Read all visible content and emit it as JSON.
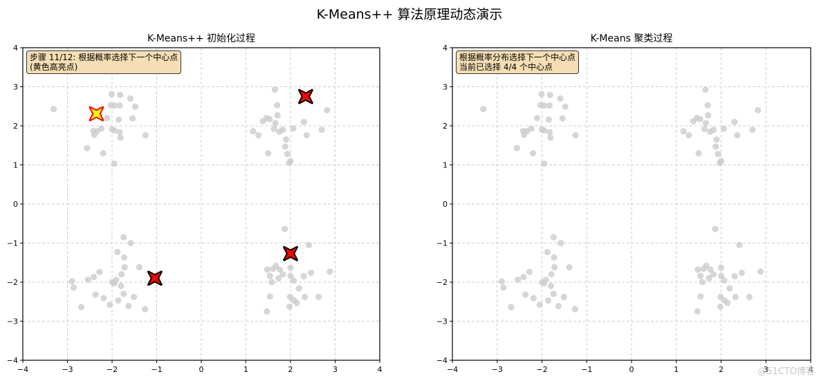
{
  "figure": {
    "suptitle": "K-Means++ 算法原理动态演示",
    "watermark": "@51CTO博客"
  },
  "left_panel": {
    "title": "K-Means++ 初始化过程",
    "info_line1": "步骤 11/12: 根据概率选择下一个中心点",
    "info_line2": "(黄色高亮点)"
  },
  "right_panel": {
    "title": "K-Means 聚类过程",
    "info_line1": "根据概率分布选择下一个中心点",
    "info_line2": "当前已选择 4/4 个中心点"
  },
  "colors": {
    "point": "#cccccc",
    "center_fill": "#ff0000",
    "center_edge": "#000000",
    "highlight_fill": "#ffff00",
    "highlight_edge": "#ff0000",
    "grid": "#cccccc",
    "infobox_bg": "#f5deb3"
  },
  "chart_data": [
    {
      "type": "scatter",
      "title": "K-Means++ 初始化过程",
      "xlabel": "",
      "ylabel": "",
      "xlim": [
        -4,
        4
      ],
      "ylim": [
        -4,
        4
      ],
      "xticks": [
        -4,
        -3,
        -2,
        -1,
        0,
        1,
        2,
        3,
        4
      ],
      "yticks": [
        -4,
        -3,
        -2,
        -1,
        0,
        1,
        2,
        3,
        4
      ],
      "grid": true,
      "annotation": "步骤 11/12: 根据概率选择下一个中心点 (黄色高亮点)",
      "series": [
        {
          "name": "data points",
          "points": [
            [
              -3.31,
              2.43
            ],
            [
              -2.01,
              2.81
            ],
            [
              -1.82,
              2.79
            ],
            [
              -1.59,
              2.7
            ],
            [
              -2.03,
              2.53
            ],
            [
              -1.95,
              2.52
            ],
            [
              -1.83,
              2.52
            ],
            [
              -1.48,
              2.49
            ],
            [
              -2.11,
              2.2
            ],
            [
              -1.85,
              2.16
            ],
            [
              -1.54,
              2.19
            ],
            [
              -2.42,
              1.87
            ],
            [
              -2.34,
              1.86
            ],
            [
              -2.24,
              1.93
            ],
            [
              -2.4,
              1.77
            ],
            [
              -2.0,
              1.91
            ],
            [
              -1.95,
              1.88
            ],
            [
              -1.83,
              1.84
            ],
            [
              -1.81,
              1.7
            ],
            [
              -1.25,
              1.76
            ],
            [
              -2.56,
              1.43
            ],
            [
              -2.2,
              1.3
            ],
            [
              -1.95,
              1.03
            ],
            [
              1.16,
              1.86
            ],
            [
              1.28,
              1.76
            ],
            [
              1.38,
              2.12
            ],
            [
              1.46,
              2.2
            ],
            [
              1.53,
              2.17
            ],
            [
              1.65,
              2.93
            ],
            [
              1.7,
              2.53
            ],
            [
              1.71,
              2.27
            ],
            [
              1.66,
              2.07
            ],
            [
              1.63,
              1.92
            ],
            [
              1.75,
              1.85
            ],
            [
              1.83,
              1.9
            ],
            [
              1.9,
              1.65
            ],
            [
              1.5,
              1.3
            ],
            [
              1.88,
              1.47
            ],
            [
              1.93,
              1.28
            ],
            [
              2.06,
              1.93
            ],
            [
              2.3,
              2.1
            ],
            [
              2.36,
              1.76
            ],
            [
              2.7,
              1.9
            ],
            [
              2.82,
              2.4
            ],
            [
              1.97,
              1.05
            ],
            [
              2.0,
              1.1
            ],
            [
              -2.0,
              -2.0
            ],
            [
              -1.8,
              -2.1
            ],
            [
              -2.28,
              -1.74
            ],
            [
              -2.41,
              -1.87
            ],
            [
              -2.54,
              -1.94
            ],
            [
              -2.37,
              -2.32
            ],
            [
              -2.19,
              -2.41
            ],
            [
              -2.05,
              -2.58
            ],
            [
              -2.69,
              -2.64
            ],
            [
              -2.86,
              -2.14
            ],
            [
              -2.9,
              -1.98
            ],
            [
              -1.86,
              -2.47
            ],
            [
              -1.79,
              -1.8
            ],
            [
              -1.73,
              -1.37
            ],
            [
              -1.72,
              -1.62
            ],
            [
              -1.88,
              -1.23
            ],
            [
              -1.63,
              -2.61
            ],
            [
              -1.39,
              -1.62
            ],
            [
              -1.26,
              -2.69
            ],
            [
              -1.74,
              -0.85
            ],
            [
              -1.58,
              -1.0
            ],
            [
              -1.91,
              -1.94
            ],
            [
              -1.51,
              -2.38
            ],
            [
              -1.95,
              -2.03
            ],
            [
              -1.74,
              -2.3
            ],
            [
              1.87,
              -0.64
            ],
            [
              2.41,
              -1.05
            ],
            [
              1.61,
              -1.66
            ],
            [
              1.67,
              -1.58
            ],
            [
              1.76,
              -1.68
            ],
            [
              1.73,
              -1.9
            ],
            [
              1.54,
              -1.84
            ],
            [
              1.48,
              -1.68
            ],
            [
              2.0,
              -1.63
            ],
            [
              2.0,
              -1.84
            ],
            [
              1.99,
              -2.38
            ],
            [
              2.08,
              -2.47
            ],
            [
              2.14,
              -2.53
            ],
            [
              2.07,
              -1.96
            ],
            [
              2.3,
              -1.85
            ],
            [
              2.46,
              -1.76
            ],
            [
              2.88,
              -1.73
            ],
            [
              2.32,
              -2.38
            ],
            [
              2.63,
              -2.38
            ],
            [
              1.54,
              -2.37
            ],
            [
              1.47,
              -2.75
            ],
            [
              1.98,
              -2.63
            ],
            [
              1.58,
              -2.0
            ],
            [
              2.19,
              -2.16
            ],
            [
              1.83,
              -1.8
            ]
          ]
        },
        {
          "name": "selected centers",
          "points": [
            [
              2.34,
              2.75
            ],
            [
              2.0,
              -1.27
            ],
            [
              -1.04,
              -1.9
            ]
          ]
        },
        {
          "name": "highlighted candidate",
          "points": [
            [
              -2.35,
              2.31
            ]
          ]
        }
      ]
    },
    {
      "type": "scatter",
      "title": "K-Means 聚类过程",
      "xlabel": "",
      "ylabel": "",
      "xlim": [
        -4,
        4
      ],
      "ylim": [
        -4,
        4
      ],
      "xticks": [
        -4,
        -3,
        -2,
        -1,
        0,
        1,
        2,
        3,
        4
      ],
      "yticks": [
        -4,
        -3,
        -2,
        -1,
        0,
        1,
        2,
        3,
        4
      ],
      "grid": true,
      "annotation": "根据概率分布选择下一个中心点 当前已选择 4/4 个中心点",
      "series": [
        {
          "name": "data points",
          "same_as_left": true
        }
      ]
    }
  ]
}
